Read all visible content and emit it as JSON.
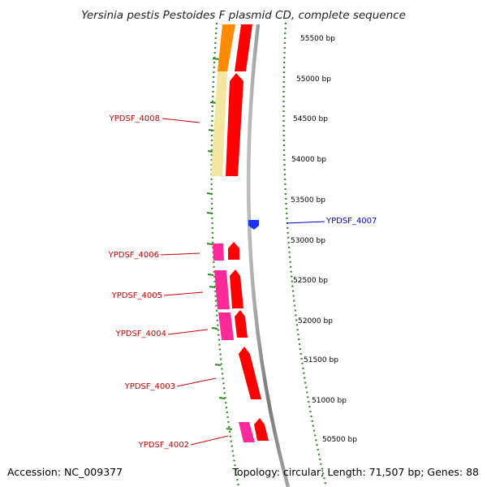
{
  "title": "Yersinia pestis Pestoides F plasmid CD, complete sequence",
  "accession": "Accession: NC_009377",
  "summary": "Topology: circular; Length: 71,507 bp; Genes: 88",
  "ticks": [
    "55500 bp",
    "55000 bp",
    "54500 bp",
    "54000 bp",
    "53500 bp",
    "53000 bp",
    "52500 bp",
    "52000 bp",
    "51500 bp",
    "51000 bp",
    "50500 bp"
  ],
  "genes": [
    {
      "name": "YPDSF_4008",
      "color": "#cc0000"
    },
    {
      "name": "YPDSF_4007",
      "color": "#0000cc"
    },
    {
      "name": "YPDSF_4006",
      "color": "#cc0000"
    },
    {
      "name": "YPDSF_4005",
      "color": "#cc0000"
    },
    {
      "name": "YPDSF_4004",
      "color": "#cc0000"
    },
    {
      "name": "YPDSF_4003",
      "color": "#cc0000"
    },
    {
      "name": "YPDSF_4002",
      "color": "#cc0000"
    }
  ],
  "colors": {
    "cds": "#ff0000",
    "rna_blue": "#1a33ff",
    "orange": "#ff8c00",
    "pale_yellow": "#f2e6a0",
    "magenta": "#ff2a9a",
    "backbone": "#888888",
    "gc_dots": "#2e8b22"
  }
}
